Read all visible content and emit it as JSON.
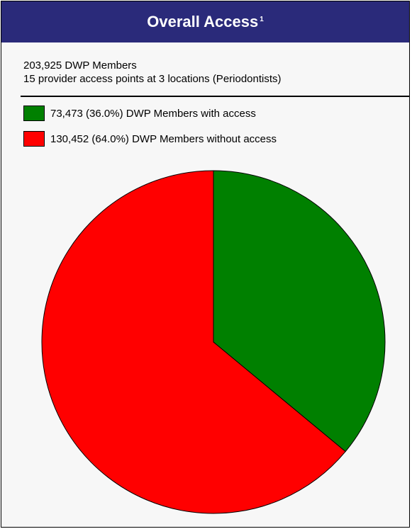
{
  "title": "Overall Access",
  "title_superscript": "1",
  "info": {
    "members": "203,925 DWP Members",
    "providers": "15 provider access points at 3 locations (Periodontists)"
  },
  "legend": [
    {
      "label": "73,473 (36.0%) DWP Members with access",
      "color": "#008000"
    },
    {
      "label": "130,452 (64.0%) DWP Members without access",
      "color": "#ff0000"
    }
  ],
  "colors": {
    "title_bar": "#2a2a7a",
    "background": "#f7f7f7"
  },
  "chart_data": {
    "type": "pie",
    "categories": [
      "DWP Members with access",
      "DWP Members without access"
    ],
    "values": [
      73473,
      130452
    ],
    "percentages": [
      36.0,
      64.0
    ],
    "colors": [
      "#008000",
      "#ff0000"
    ],
    "title": "Overall Access",
    "legend_position": "top-left"
  }
}
